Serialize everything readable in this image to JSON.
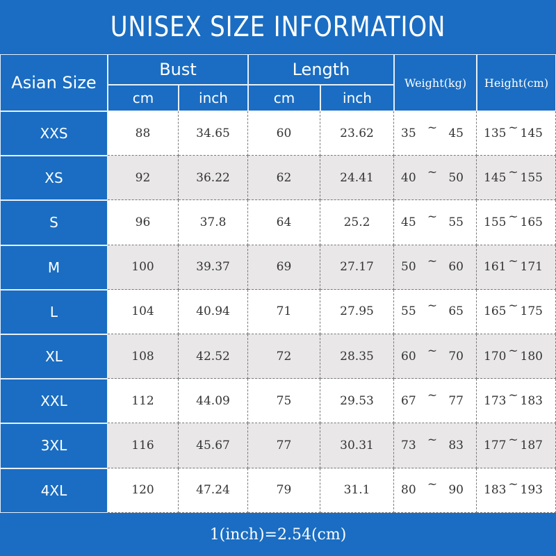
{
  "header": {
    "title": "UNISEX SIZE INFORMATION"
  },
  "table": {
    "size_header": "Asian Size",
    "groups": [
      "Bust",
      "Length",
      "Weight(kg)",
      "Height(cm)"
    ],
    "units": [
      "cm",
      "inch",
      "cm",
      "inch"
    ],
    "range_separator": "~",
    "rows": [
      [
        "XXS",
        "88",
        "34.65",
        "60",
        "23.62",
        "35",
        "45",
        "135",
        "145"
      ],
      [
        "XS",
        "92",
        "36.22",
        "62",
        "24.41",
        "40",
        "50",
        "145",
        "155"
      ],
      [
        "S",
        "96",
        "37.8",
        "64",
        "25.2",
        "45",
        "55",
        "155",
        "165"
      ],
      [
        "M",
        "100",
        "39.37",
        "69",
        "27.17",
        "50",
        "60",
        "161",
        "171"
      ],
      [
        "L",
        "104",
        "40.94",
        "71",
        "27.95",
        "55",
        "65",
        "165",
        "175"
      ],
      [
        "XL",
        "108",
        "42.52",
        "72",
        "28.35",
        "60",
        "70",
        "170",
        "180"
      ],
      [
        "XXL",
        "112",
        "44.09",
        "75",
        "29.53",
        "67",
        "77",
        "173",
        "183"
      ],
      [
        "3XL",
        "116",
        "45.67",
        "77",
        "30.31",
        "73",
        "83",
        "177",
        "187"
      ],
      [
        "4XL",
        "120",
        "47.24",
        "79",
        "31.1",
        "80",
        "90",
        "183",
        "193"
      ]
    ]
  },
  "footer": {
    "note": "1(inch)=2.54(cm)"
  }
}
